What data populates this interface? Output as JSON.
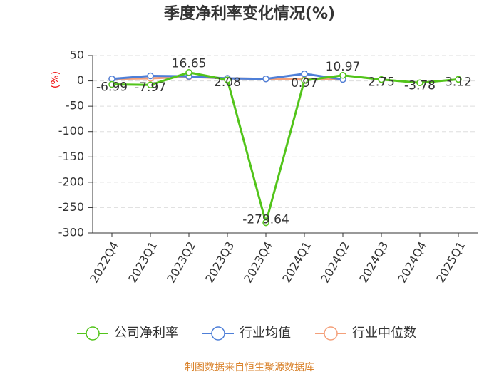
{
  "chart_data": {
    "type": "line",
    "title": "季度净利率变化情况(%)",
    "y_label": "(%)",
    "categories": [
      "2022Q4",
      "2023Q1",
      "2023Q2",
      "2023Q3",
      "2023Q4",
      "2024Q1",
      "2024Q2",
      "2024Q3",
      "2024Q4",
      "2025Q1"
    ],
    "series": [
      {
        "name": "公司净利率",
        "color": "#52c41a",
        "values": [
          -6.99,
          -7.97,
          16.65,
          2.08,
          -279.64,
          0.97,
          10.97,
          2.75,
          -3.78,
          3.12
        ],
        "show_labels": true
      },
      {
        "name": "行业均值",
        "color": "#4e7fd8",
        "values": [
          4,
          10,
          9,
          5,
          4,
          14,
          3,
          null,
          null,
          null
        ]
      },
      {
        "name": "行业中位数",
        "color": "#f4a07a",
        "values": [
          4,
          5,
          8,
          5,
          4,
          3,
          3,
          null,
          null,
          null
        ]
      }
    ],
    "ylim": [
      -300,
      50
    ],
    "yticks": [
      50,
      0,
      -50,
      -100,
      -150,
      -200,
      -250,
      -300
    ],
    "grid": true,
    "source": "制图数据来自恒生聚源数据库"
  }
}
